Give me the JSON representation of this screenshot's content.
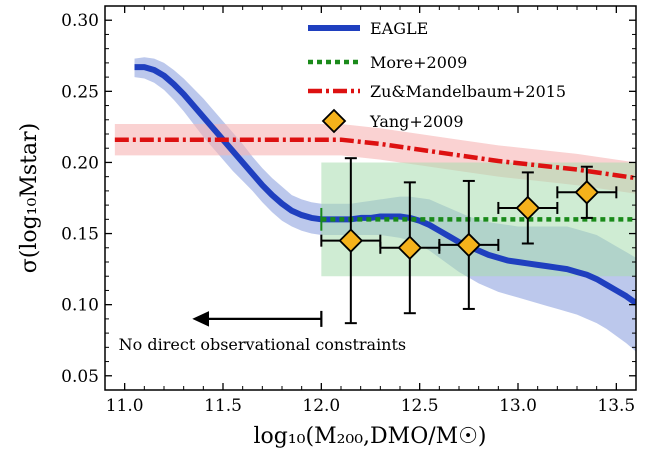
{
  "chart_data": {
    "type": "line",
    "xlabel": "log₁₀(M₂₀₀,DMO/M☉)",
    "ylabel": "σ(log₁₀Mstar)",
    "xlim": [
      10.9,
      13.6
    ],
    "ylim": [
      0.04,
      0.31
    ],
    "x_ticks": [
      11.0,
      11.5,
      12.0,
      12.5,
      13.0,
      13.5
    ],
    "x_tick_labels": [
      "11.0",
      "11.5",
      "12.0",
      "12.5",
      "13.0",
      "13.5"
    ],
    "y_ticks": [
      0.05,
      0.1,
      0.15,
      0.2,
      0.25,
      0.3
    ],
    "y_tick_labels": [
      "0.05",
      "0.10",
      "0.15",
      "0.20",
      "0.25",
      "0.30"
    ],
    "grid": false,
    "legend_placement": "top-right",
    "series": [
      {
        "name": "EAGLE",
        "style": "solid",
        "color": "#1f3fbf",
        "band_color": "#8fa3e0",
        "x": [
          11.05,
          11.1,
          11.15,
          11.2,
          11.25,
          11.3,
          11.35,
          11.4,
          11.45,
          11.5,
          11.55,
          11.6,
          11.65,
          11.7,
          11.75,
          11.8,
          11.85,
          11.9,
          11.95,
          12.0,
          12.05,
          12.1,
          12.15,
          12.2,
          12.25,
          12.3,
          12.35,
          12.4,
          12.45,
          12.5,
          12.55,
          12.6,
          12.65,
          12.7,
          12.75,
          12.8,
          12.85,
          12.9,
          12.95,
          13.0,
          13.05,
          13.1,
          13.15,
          13.2,
          13.25,
          13.3,
          13.35,
          13.4,
          13.45,
          13.5,
          13.55,
          13.6
        ],
        "y": [
          0.267,
          0.267,
          0.265,
          0.261,
          0.255,
          0.248,
          0.24,
          0.232,
          0.224,
          0.216,
          0.208,
          0.2,
          0.192,
          0.184,
          0.177,
          0.171,
          0.166,
          0.163,
          0.161,
          0.16,
          0.16,
          0.16,
          0.16,
          0.161,
          0.161,
          0.162,
          0.162,
          0.162,
          0.161,
          0.159,
          0.156,
          0.152,
          0.148,
          0.144,
          0.141,
          0.138,
          0.135,
          0.133,
          0.131,
          0.13,
          0.129,
          0.128,
          0.127,
          0.126,
          0.125,
          0.123,
          0.121,
          0.118,
          0.114,
          0.11,
          0.106,
          0.101
        ],
        "band_lower": [
          0.26,
          0.259,
          0.256,
          0.251,
          0.244,
          0.236,
          0.227,
          0.218,
          0.21,
          0.202,
          0.194,
          0.187,
          0.18,
          0.172,
          0.165,
          0.159,
          0.155,
          0.152,
          0.15,
          0.149,
          0.149,
          0.149,
          0.149,
          0.149,
          0.149,
          0.149,
          0.148,
          0.147,
          0.145,
          0.142,
          0.138,
          0.133,
          0.128,
          0.123,
          0.119,
          0.115,
          0.112,
          0.109,
          0.107,
          0.105,
          0.103,
          0.101,
          0.099,
          0.097,
          0.095,
          0.093,
          0.09,
          0.087,
          0.083,
          0.078,
          0.073,
          0.067
        ],
        "band_upper": [
          0.273,
          0.274,
          0.273,
          0.27,
          0.265,
          0.259,
          0.252,
          0.245,
          0.237,
          0.229,
          0.221,
          0.213,
          0.204,
          0.196,
          0.189,
          0.183,
          0.177,
          0.174,
          0.172,
          0.171,
          0.171,
          0.171,
          0.171,
          0.172,
          0.173,
          0.174,
          0.175,
          0.176,
          0.176,
          0.175,
          0.174,
          0.171,
          0.168,
          0.165,
          0.162,
          0.16,
          0.158,
          0.157,
          0.156,
          0.155,
          0.155,
          0.155,
          0.155,
          0.155,
          0.155,
          0.153,
          0.151,
          0.149,
          0.145,
          0.141,
          0.137,
          0.133
        ]
      },
      {
        "name": "More+2009",
        "style": "dotted",
        "color": "#1a8a1a",
        "band_color": "#a8dcae",
        "x": [
          12.0,
          13.6
        ],
        "y": [
          0.16,
          0.16
        ],
        "band_lower": [
          0.12,
          0.12
        ],
        "band_upper": [
          0.2,
          0.2
        ]
      },
      {
        "name": "Zu&Mandelbaum+2015",
        "style": "dashdot",
        "color": "#dd1111",
        "band_color": "#f7b4b4",
        "x": [
          10.95,
          11.5,
          12.0,
          12.1,
          12.3,
          12.5,
          12.7,
          12.9,
          13.1,
          13.3,
          13.5,
          13.6
        ],
        "y": [
          0.216,
          0.216,
          0.216,
          0.216,
          0.213,
          0.209,
          0.205,
          0.201,
          0.198,
          0.195,
          0.191,
          0.189
        ],
        "band_lower": [
          0.205,
          0.205,
          0.205,
          0.205,
          0.202,
          0.198,
          0.194,
          0.19,
          0.187,
          0.184,
          0.18,
          0.178
        ],
        "band_upper": [
          0.227,
          0.227,
          0.227,
          0.227,
          0.224,
          0.22,
          0.216,
          0.212,
          0.209,
          0.206,
          0.202,
          0.2
        ]
      },
      {
        "name": "Yang+2009",
        "style": "markers",
        "marker": "diamond",
        "color": "#f5b21b",
        "edge_color": "#000000",
        "points": [
          {
            "x": 12.15,
            "y": 0.145,
            "xerr": 0.15,
            "y_low": 0.087,
            "y_high": 0.203
          },
          {
            "x": 12.45,
            "y": 0.14,
            "xerr": 0.15,
            "y_low": 0.094,
            "y_high": 0.186
          },
          {
            "x": 12.75,
            "y": 0.142,
            "xerr": 0.15,
            "y_low": 0.097,
            "y_high": 0.187
          },
          {
            "x": 13.05,
            "y": 0.168,
            "xerr": 0.15,
            "y_low": 0.143,
            "y_high": 0.193
          },
          {
            "x": 13.35,
            "y": 0.179,
            "xerr": 0.15,
            "y_low": 0.161,
            "y_high": 0.197
          }
        ]
      }
    ],
    "annotations": [
      {
        "text": "No direct observational constraints",
        "x": 11.0,
        "y": 0.068
      },
      {
        "type": "arrow",
        "x_start": 12.0,
        "x_end": 11.35,
        "y": 0.09
      }
    ]
  }
}
